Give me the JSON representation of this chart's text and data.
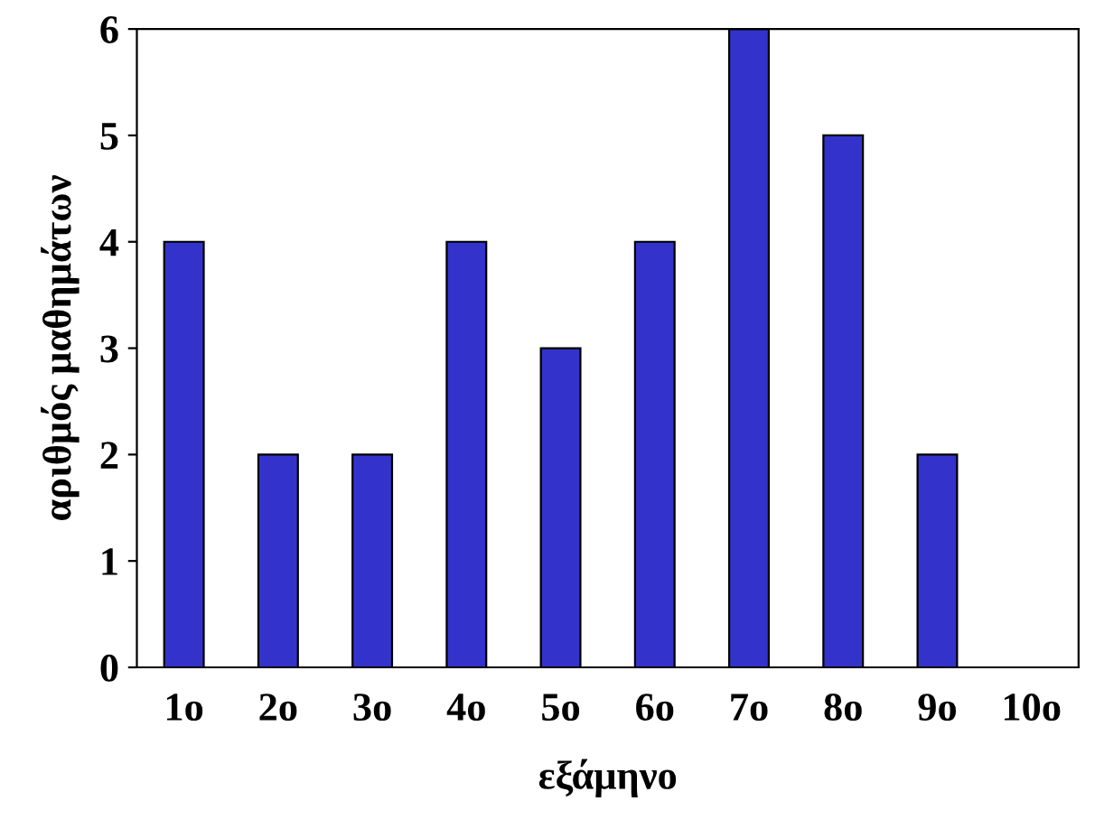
{
  "chart_data": {
    "type": "bar",
    "xlabel": "εξάμηνο",
    "ylabel": "αριθμός μαθημάτων",
    "categories": [
      "1ο",
      "2ο",
      "3ο",
      "4ο",
      "5ο",
      "6ο",
      "7ο",
      "8ο",
      "9ο",
      "10ο"
    ],
    "values": [
      4,
      2,
      2,
      4,
      3,
      4,
      6,
      5,
      2,
      0
    ],
    "color": "#3333cc",
    "ylim": [
      0,
      6
    ],
    "yticks": [
      0,
      1,
      2,
      3,
      4,
      5,
      6
    ],
    "grid": false,
    "legend": false
  }
}
